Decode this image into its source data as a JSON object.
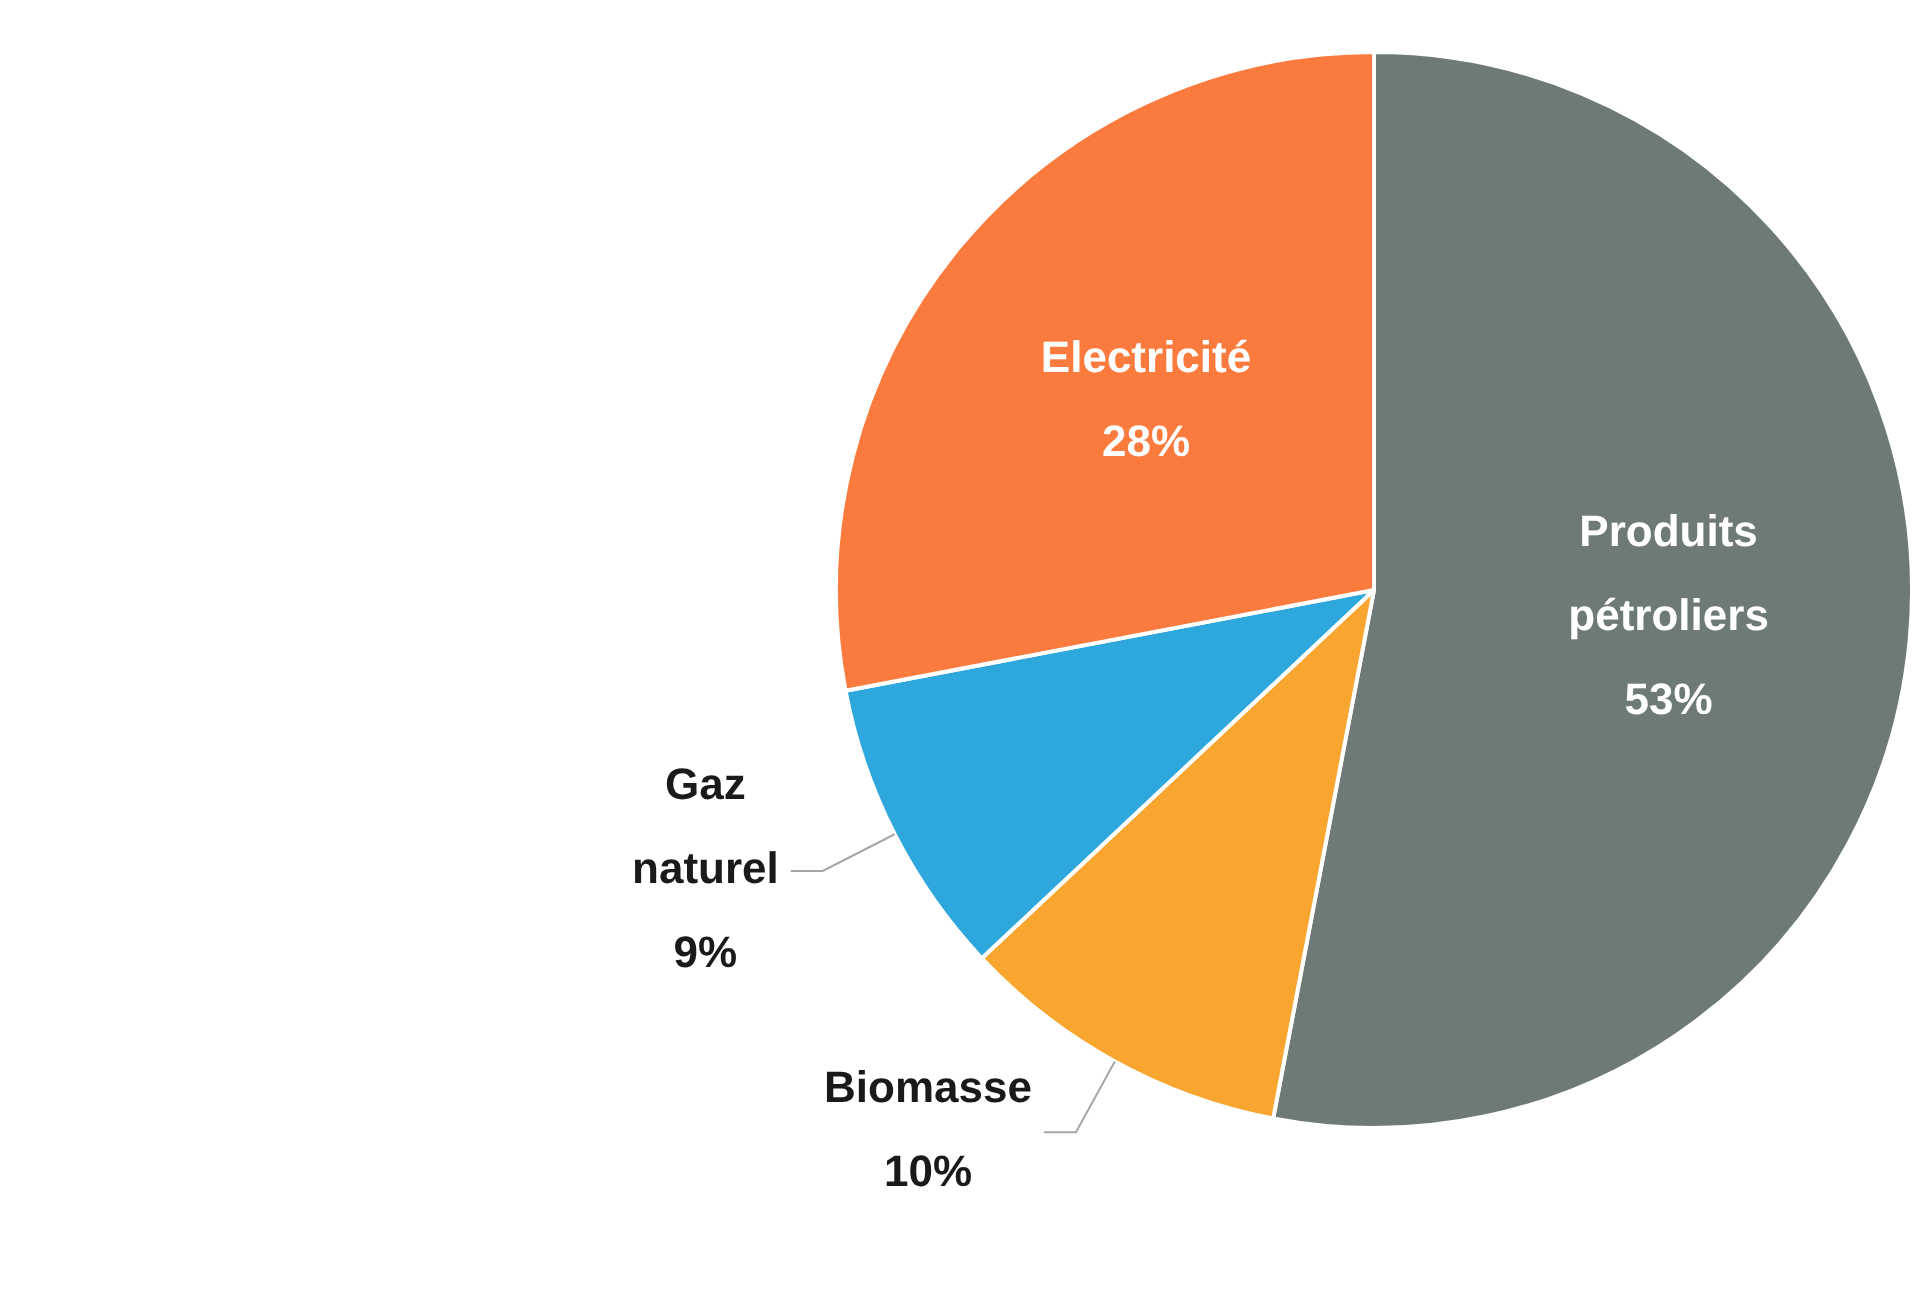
{
  "chart_data": {
    "type": "pie",
    "categories": [
      "Produits pétroliers",
      "Biomasse",
      "Gaz naturel",
      "Electricité"
    ],
    "values": [
      53,
      10,
      9,
      28
    ],
    "value_labels": [
      "53%",
      "10%",
      "9%",
      "28%"
    ],
    "colors": [
      "#6d7a77",
      "#f9a630",
      "#2ea7dd",
      "#fb7a3d"
    ],
    "legend": false
  }
}
